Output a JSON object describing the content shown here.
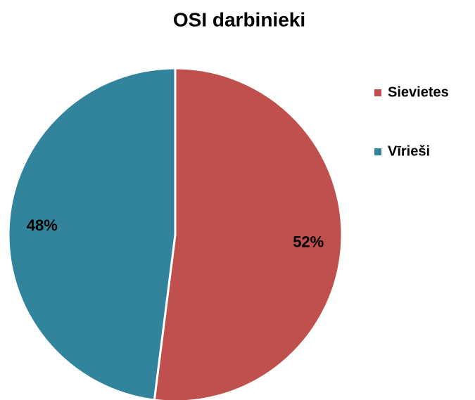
{
  "chart_data": {
    "type": "pie",
    "title": "OSI darbinieki",
    "categories": [
      "Sievietes",
      "Vīrieši"
    ],
    "values": [
      52,
      48
    ],
    "value_labels": [
      "52%",
      "48%"
    ],
    "colors": [
      "#C0504D",
      "#31849B"
    ],
    "legend": "right"
  }
}
